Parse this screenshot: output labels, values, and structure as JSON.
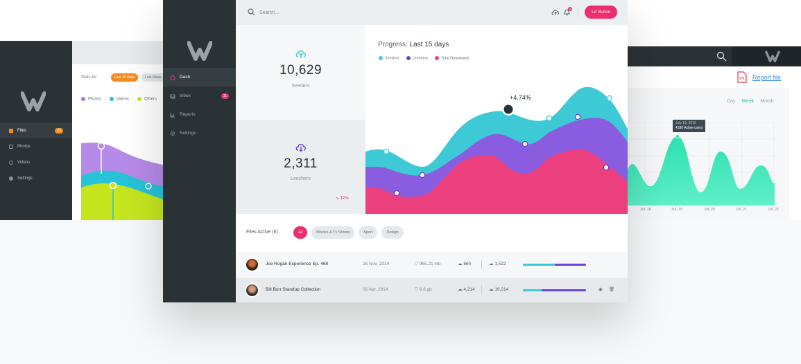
{
  "left_card": {
    "stats_label": "Stats for",
    "pill_active": "Last 15 Days",
    "pill_inactive": "Last Week",
    "legend": [
      {
        "label": "Photos",
        "color": "#a87be0"
      },
      {
        "label": "Videos",
        "color": "#27c3d6"
      },
      {
        "label": "Others",
        "color": "#c5e61f"
      }
    ],
    "nav": [
      {
        "label": "Files",
        "badge": "23"
      },
      {
        "label": "Photos"
      },
      {
        "label": "Videos"
      },
      {
        "label": "Settings"
      }
    ]
  },
  "right_card": {
    "report_link": "Report file",
    "tabs": [
      "Day",
      "Week",
      "Month"
    ],
    "active_tab": "Week",
    "tooltip_date": "July 19, 2016",
    "tooltip_value": "4180 Active users",
    "x_labels": [
      "JUL 18",
      "JUL 19",
      "JUL 20",
      "JUL 21",
      "JUL 22"
    ]
  },
  "sidebar": {
    "items": [
      {
        "label": "Dash",
        "icon": "home-icon"
      },
      {
        "label": "Inbox",
        "icon": "inbox-icon",
        "badge": "11"
      },
      {
        "label": "Reports",
        "icon": "reports-icon"
      },
      {
        "label": "Settings",
        "icon": "gear-icon"
      }
    ]
  },
  "topbar": {
    "search_placeholder": "Search...",
    "notification_count": "4",
    "button_label": "Le' Button"
  },
  "stats": {
    "seeders_value": "10,629",
    "seeders_label": "Seeders",
    "leechers_value": "2,311",
    "leechers_label": "Leechers",
    "leechers_change": "12%"
  },
  "progress": {
    "title_prefix": "Progress:",
    "title_range": "Last 15 days",
    "callout": "+4.74%",
    "legend": [
      {
        "label": "Seeders",
        "color": "#3ec9d6"
      },
      {
        "label": "Leechers",
        "color": "#6b3ee0"
      },
      {
        "label": "Total Downloads",
        "color": "#ec3f7e"
      }
    ]
  },
  "files": {
    "heading": "Files Active (6)",
    "tabs": [
      "All",
      "Movies & Tv Shows",
      "Sport",
      "Design"
    ],
    "active_tab": "All",
    "rows": [
      {
        "name": "Joe Rogan Experience Ep. 468",
        "date": "26 Nov, 2014",
        "size": "965.21 mb",
        "uploads": "860",
        "downloads": "1,522",
        "progress": 0.5
      },
      {
        "name": "Bill Burr Standup Collection",
        "date": "02 Apr, 2014",
        "size": "9.8 gb",
        "uploads": "4,214",
        "downloads": "19,214",
        "progress": 0.3
      }
    ]
  }
}
